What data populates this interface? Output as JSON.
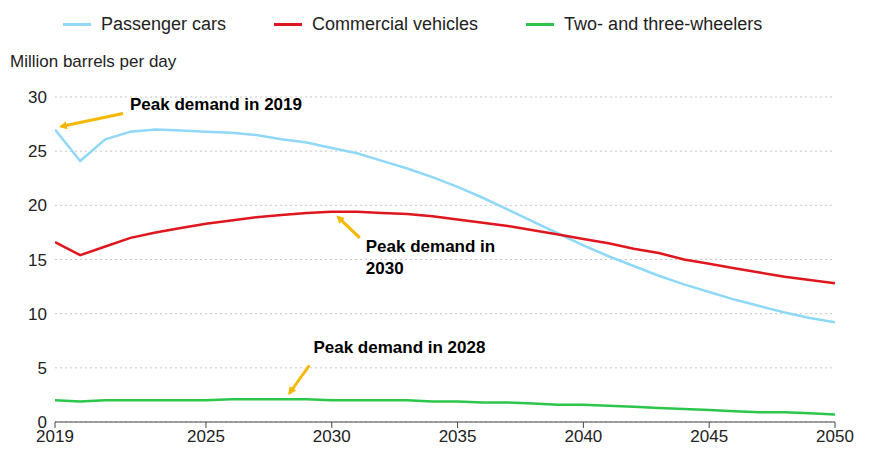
{
  "chart_data": {
    "type": "line",
    "y_label": "Million barrels per day",
    "legend": "top",
    "grid": true,
    "x": [
      2019,
      2020,
      2021,
      2022,
      2023,
      2024,
      2025,
      2026,
      2027,
      2028,
      2029,
      2030,
      2031,
      2032,
      2033,
      2034,
      2035,
      2036,
      2037,
      2038,
      2039,
      2040,
      2041,
      2042,
      2043,
      2044,
      2045,
      2046,
      2047,
      2048,
      2049,
      2050
    ],
    "xlim": [
      2019,
      2050
    ],
    "xticks": [
      2019,
      2025,
      2030,
      2035,
      2040,
      2045,
      2050
    ],
    "ylim": [
      0,
      30
    ],
    "yticks": [
      0,
      5,
      10,
      15,
      20,
      25,
      30
    ],
    "series": [
      {
        "name": "Passenger cars",
        "color": "#8fd8f8",
        "values": [
          27.0,
          24.1,
          26.1,
          26.8,
          27.0,
          26.9,
          26.8,
          26.7,
          26.5,
          26.1,
          25.8,
          25.3,
          24.8,
          24.1,
          23.4,
          22.6,
          21.7,
          20.7,
          19.6,
          18.5,
          17.4,
          16.3,
          15.3,
          14.4,
          13.5,
          12.7,
          12.0,
          11.3,
          10.7,
          10.1,
          9.6,
          9.2
        ]
      },
      {
        "name": "Commercial vehicles",
        "color": "#e0161e",
        "values": [
          16.6,
          15.4,
          16.2,
          17.0,
          17.5,
          17.9,
          18.3,
          18.6,
          18.9,
          19.1,
          19.3,
          19.4,
          19.4,
          19.3,
          19.2,
          19.0,
          18.7,
          18.4,
          18.1,
          17.7,
          17.3,
          16.9,
          16.5,
          16.0,
          15.6,
          15.0,
          14.6,
          14.2,
          13.8,
          13.4,
          13.1,
          12.8
        ]
      },
      {
        "name": "Two- and three-wheelers",
        "color": "#2bc74a",
        "values": [
          2.0,
          1.9,
          2.0,
          2.0,
          2.0,
          2.0,
          2.0,
          2.1,
          2.1,
          2.1,
          2.1,
          2.0,
          2.0,
          2.0,
          2.0,
          1.9,
          1.9,
          1.8,
          1.8,
          1.7,
          1.6,
          1.6,
          1.5,
          1.4,
          1.3,
          1.2,
          1.1,
          1.0,
          0.9,
          0.9,
          0.8,
          0.7
        ]
      }
    ],
    "annotations": [
      {
        "text": "Peak demand in 2019",
        "x": 2019,
        "y": 27.0
      },
      {
        "text": "Peak demand in 2030",
        "x": 2030,
        "y": 19.4
      },
      {
        "text": "Peak demand in 2028",
        "x": 2028,
        "y": 2.1
      }
    ]
  }
}
